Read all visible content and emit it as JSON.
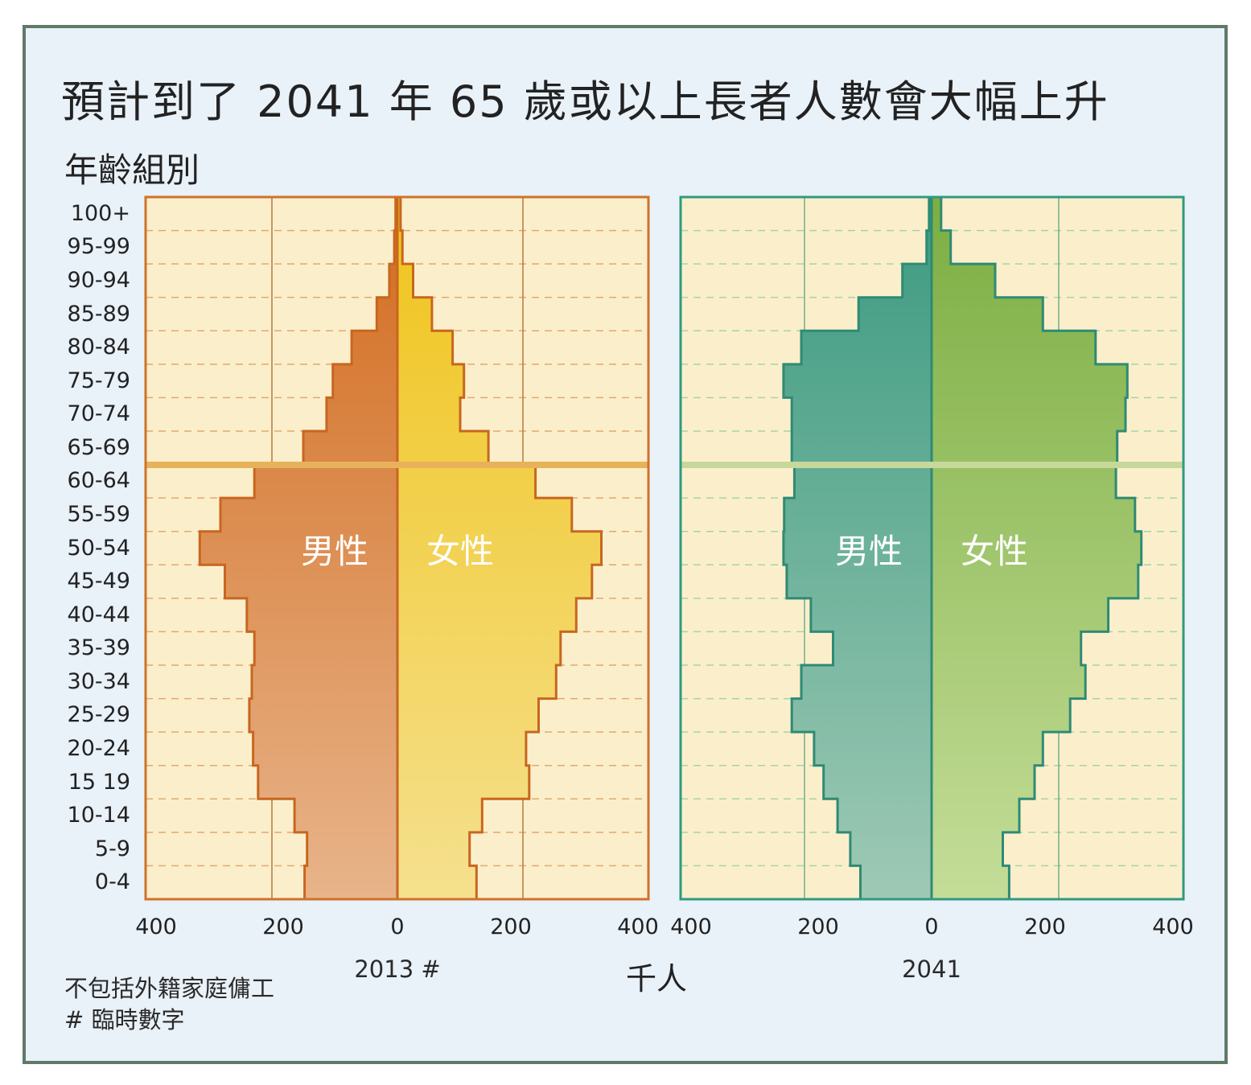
{
  "title": "預計到了 2041 年 65 歲或以上長者人數會大幅上升",
  "y_axis_title": "年齡組別",
  "x_axis_unit": "千人",
  "note_exclusion": "不包括外籍家庭傭工",
  "note_provisional": "# 臨時數字",
  "colors": {
    "male_2013": "#d0722b",
    "female_2013": "#f1c62a",
    "male_2041": "#3c9a82",
    "female_2041": "#80b04a",
    "panel_bg": "#fbefcb",
    "border_2013": "#d0722b",
    "border_2041": "#2f9a80"
  },
  "chart_data": [
    {
      "type": "bar",
      "subtype": "population-pyramid",
      "caption": "2013 #",
      "male_label": "男性",
      "female_label": "女性",
      "age_groups": [
        "0-4",
        "5-9",
        "10-14",
        "15 19",
        "20-24",
        "25-29",
        "30-34",
        "35-39",
        "40-44",
        "45-49",
        "50-54",
        "55-59",
        "60-64",
        "65-69",
        "70-74",
        "75-79",
        "80-84",
        "85-89",
        "90-94",
        "95-99",
        "100+"
      ],
      "x_ticks": [
        "400",
        "200",
        "0",
        "200",
        "400"
      ],
      "xlim": [
        0,
        400
      ],
      "series": [
        {
          "name": "男性",
          "values": [
            148,
            144,
            164,
            222,
            230,
            236,
            232,
            228,
            240,
            275,
            315,
            282,
            228,
            150,
            113,
            103,
            73,
            33,
            13,
            5,
            3
          ]
        },
        {
          "name": "女性",
          "values": [
            126,
            115,
            135,
            210,
            205,
            225,
            253,
            260,
            285,
            310,
            325,
            278,
            220,
            145,
            100,
            106,
            88,
            55,
            25,
            8,
            5
          ]
        }
      ]
    },
    {
      "type": "bar",
      "subtype": "population-pyramid",
      "caption": "2041",
      "male_label": "男性",
      "female_label": "女性",
      "age_groups": [
        "0-4",
        "5-9",
        "10-14",
        "15 19",
        "20-24",
        "25-29",
        "30-34",
        "35-39",
        "40-44",
        "45-49",
        "50-54",
        "55-59",
        "60-64",
        "65-69",
        "70-74",
        "75-79",
        "80-84",
        "85-89",
        "90-94",
        "95-99",
        "100+"
      ],
      "x_ticks": [
        "400",
        "200",
        "0",
        "200",
        "400"
      ],
      "xlim": [
        0,
        400
      ],
      "series": [
        {
          "name": "男性",
          "values": [
            112,
            128,
            148,
            170,
            185,
            220,
            205,
            155,
            190,
            228,
            233,
            232,
            216,
            220,
            220,
            233,
            205,
            115,
            46,
            8,
            4
          ]
        },
        {
          "name": "女性",
          "values": [
            122,
            112,
            138,
            162,
            175,
            218,
            242,
            235,
            278,
            325,
            330,
            320,
            290,
            292,
            305,
            308,
            258,
            175,
            100,
            30,
            15
          ]
        }
      ]
    }
  ]
}
